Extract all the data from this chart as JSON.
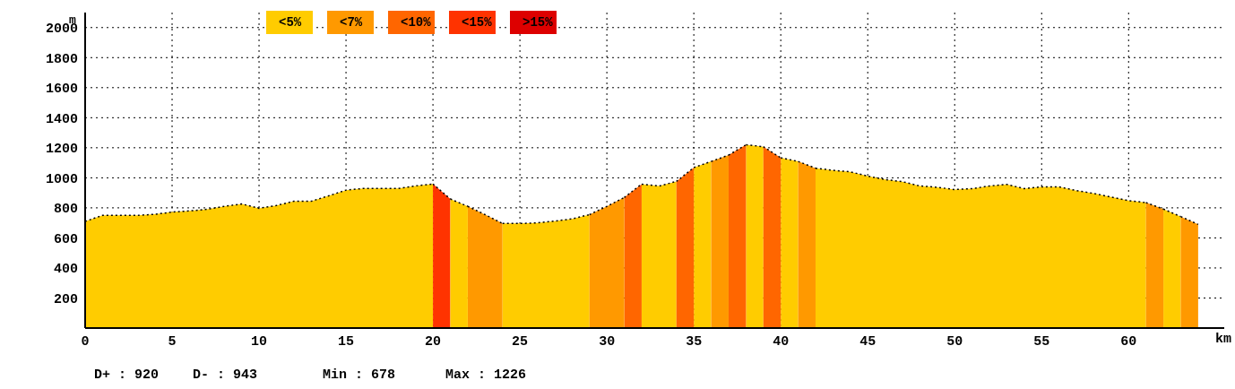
{
  "chart_data": {
    "type": "area",
    "xlabel": "km",
    "ylabel": "m",
    "xlim": [
      0,
      65.5
    ],
    "xticks": [
      0,
      5,
      10,
      15,
      20,
      25,
      30,
      35,
      40,
      45,
      50,
      55,
      60
    ],
    "ylim": [
      0,
      2100
    ],
    "yticks": [
      200,
      400,
      600,
      800,
      1000,
      1200,
      1400,
      1600,
      1800,
      2000
    ],
    "grid": true,
    "legend": "top",
    "line_style": "dotted",
    "series": [
      {
        "name": "<5%",
        "color": "#ffcc00",
        "x": [
          0,
          1,
          2,
          3,
          4,
          5,
          6,
          7,
          8,
          9,
          10,
          11,
          12,
          13,
          14,
          15,
          16,
          17,
          18,
          19,
          20
        ],
        "values": [
          710,
          750,
          750,
          750,
          757,
          772,
          780,
          790,
          810,
          826,
          797,
          816,
          844,
          844,
          880,
          918,
          929,
          929,
          929,
          946,
          959
        ]
      },
      {
        "name": "<7%",
        "color": "#ff9900",
        "x": [
          22,
          23,
          24
        ],
        "values": [
          810,
          755,
          696
        ]
      },
      {
        "name": "<10%",
        "color": "#ff6600",
        "x": [
          31,
          32
        ],
        "values": [
          869,
          958
        ]
      },
      {
        "name": "<15%",
        "color": "#ff3300",
        "x": [
          20,
          21
        ],
        "values": [
          959,
          859
        ]
      },
      {
        "name": ">15%",
        "color": "#dd0000"
      },
      {
        "color": "#ffcc00",
        "x": [
          21,
          22
        ],
        "values": [
          859,
          810
        ]
      },
      {
        "color": "#ffcc00",
        "x": [
          24,
          25,
          26,
          27,
          28,
          29
        ],
        "values": [
          696,
          696,
          700,
          712,
          727,
          755
        ]
      },
      {
        "color": "#ffcc00",
        "x": [
          32,
          33,
          34
        ],
        "values": [
          958,
          945,
          976
        ]
      },
      {
        "color": "#ffcc00",
        "x": [
          35,
          36
        ],
        "values": [
          1068,
          1109
        ]
      },
      {
        "color": "#ffcc00",
        "x": [
          38,
          39
        ],
        "values": [
          1220,
          1207
        ]
      },
      {
        "color": "#ffcc00",
        "x": [
          40,
          41
        ],
        "values": [
          1133,
          1109
        ]
      },
      {
        "color": "#ffcc00",
        "x": [
          42,
          43,
          44,
          45,
          46,
          47,
          48,
          49,
          50,
          51,
          52,
          53,
          54,
          55,
          56,
          57,
          58,
          59,
          60,
          61
        ],
        "values": [
          1064,
          1050,
          1040,
          1011,
          989,
          974,
          946,
          937,
          922,
          928,
          946,
          956,
          928,
          940,
          940,
          915,
          896,
          872,
          848,
          835
        ]
      },
      {
        "color": "#ffcc00",
        "x": [
          62,
          63
        ],
        "values": [
          792,
          742
        ]
      },
      {
        "color": "#ff9900",
        "x": [
          29,
          30,
          31
        ],
        "values": [
          755,
          810,
          869
        ]
      },
      {
        "color": "#ff9900",
        "x": [
          36,
          37
        ],
        "values": [
          1109,
          1151
        ]
      },
      {
        "color": "#ff9900",
        "x": [
          41,
          42
        ],
        "values": [
          1109,
          1064
        ]
      },
      {
        "color": "#ff9900",
        "x": [
          61,
          62
        ],
        "values": [
          835,
          792
        ]
      },
      {
        "color": "#ff9900",
        "x": [
          63,
          64
        ],
        "values": [
          742,
          690
        ]
      },
      {
        "color": "#ff6600",
        "x": [
          34,
          35
        ],
        "values": [
          976,
          1068
        ]
      },
      {
        "color": "#ff6600",
        "x": [
          37,
          38
        ],
        "values": [
          1151,
          1220
        ]
      },
      {
        "color": "#ff6600",
        "x": [
          39,
          40
        ],
        "values": [
          1207,
          1133
        ]
      }
    ],
    "annotations": [
      "D+ : 920",
      "D- : 943",
      "Min : 678",
      "Max : 1226"
    ]
  }
}
